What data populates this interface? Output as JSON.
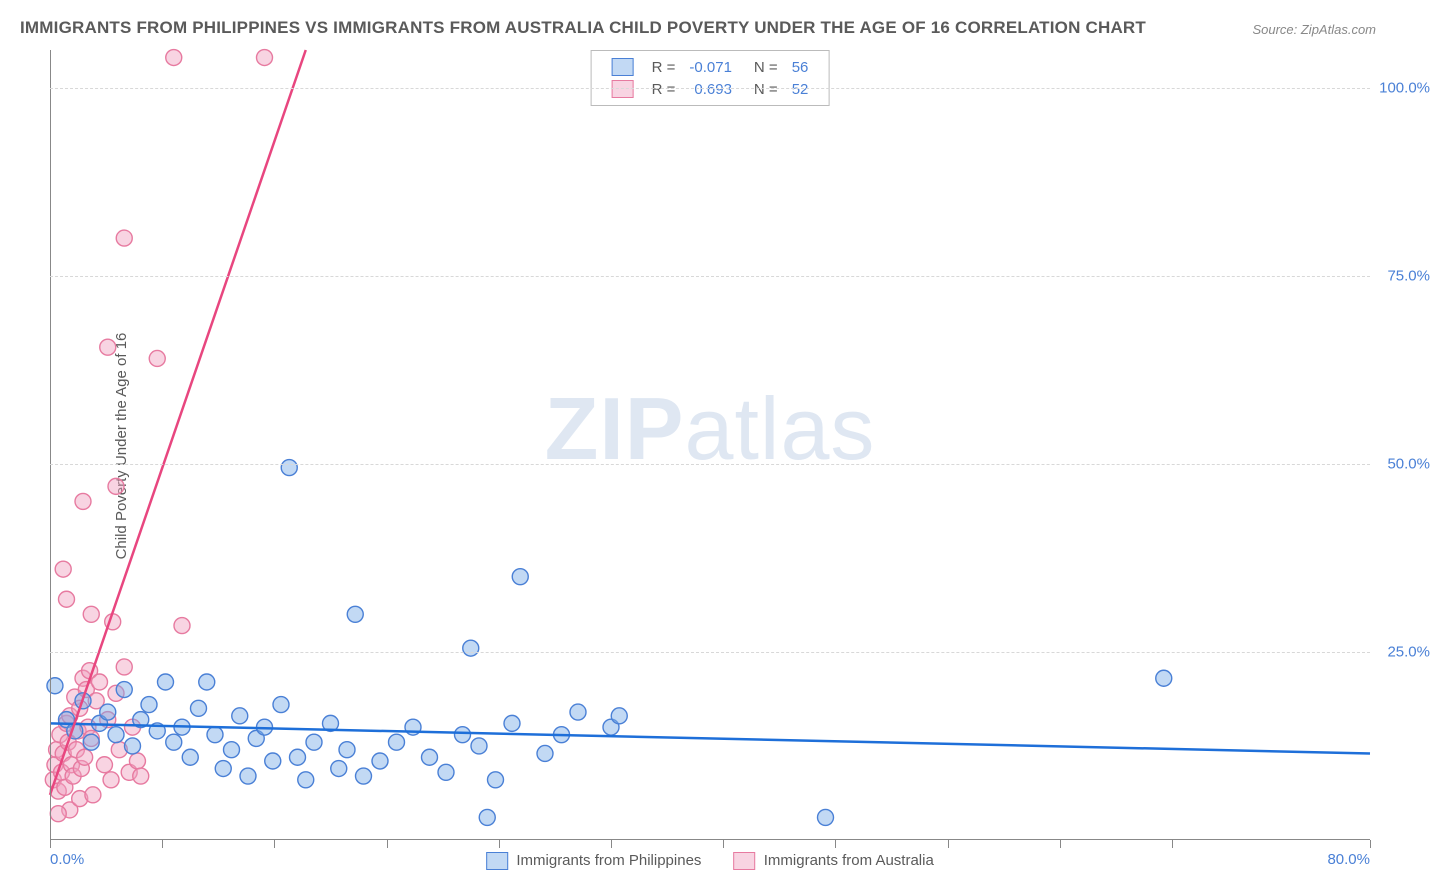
{
  "title": "IMMIGRANTS FROM PHILIPPINES VS IMMIGRANTS FROM AUSTRALIA CHILD POVERTY UNDER THE AGE OF 16 CORRELATION CHART",
  "source": "Source: ZipAtlas.com",
  "ylabel": "Child Poverty Under the Age of 16",
  "watermark_a": "ZIP",
  "watermark_b": "atlas",
  "chart": {
    "type": "scatter",
    "background_color": "#ffffff",
    "grid_color": "#d8d8d8",
    "axis_color": "#888888",
    "text_color": "#5a5a5a",
    "value_color": "#4a80d6",
    "title_fontsize": 17,
    "label_fontsize": 15,
    "xlim": [
      0,
      80
    ],
    "ylim": [
      0,
      105
    ],
    "yticks": [
      25,
      50,
      75,
      100
    ],
    "ytick_labels": [
      "25.0%",
      "50.0%",
      "75.0%",
      "100.0%"
    ],
    "xtick_minor": [
      0,
      6.8,
      13.6,
      20.4,
      27.2,
      34,
      40.8,
      47.6,
      54.4,
      61.2,
      68,
      80
    ],
    "xtick_labels": {
      "0": "0.0%",
      "80": "80.0%"
    },
    "series": [
      {
        "name": "Immigrants from Philippines",
        "color_fill": "rgba(120,170,230,0.45)",
        "color_stroke": "#4a80d6",
        "line_color": "#1e6fd9",
        "marker_r": 8,
        "R": "-0.071",
        "N": "56",
        "trend": {
          "x1": 0,
          "y1": 15.5,
          "x2": 80,
          "y2": 11.5
        },
        "points": [
          [
            0.3,
            20.5
          ],
          [
            1.0,
            16.0
          ],
          [
            1.5,
            14.5
          ],
          [
            2.0,
            18.5
          ],
          [
            2.5,
            13.0
          ],
          [
            3.0,
            15.5
          ],
          [
            3.5,
            17.0
          ],
          [
            4.0,
            14.0
          ],
          [
            4.5,
            20.0
          ],
          [
            5.0,
            12.5
          ],
          [
            5.5,
            16.0
          ],
          [
            6.0,
            18.0
          ],
          [
            6.5,
            14.5
          ],
          [
            7.0,
            21.0
          ],
          [
            7.5,
            13.0
          ],
          [
            8.0,
            15.0
          ],
          [
            8.5,
            11.0
          ],
          [
            9.0,
            17.5
          ],
          [
            9.5,
            21.0
          ],
          [
            10.0,
            14.0
          ],
          [
            10.5,
            9.5
          ],
          [
            11.0,
            12.0
          ],
          [
            11.5,
            16.5
          ],
          [
            12.0,
            8.5
          ],
          [
            12.5,
            13.5
          ],
          [
            13.0,
            15.0
          ],
          [
            13.5,
            10.5
          ],
          [
            14.0,
            18.0
          ],
          [
            15.0,
            11.0
          ],
          [
            15.5,
            8.0
          ],
          [
            16.0,
            13.0
          ],
          [
            17.0,
            15.5
          ],
          [
            17.5,
            9.5
          ],
          [
            18.0,
            12.0
          ],
          [
            18.5,
            30.0
          ],
          [
            19.0,
            8.5
          ],
          [
            20.0,
            10.5
          ],
          [
            21.0,
            13.0
          ],
          [
            22.0,
            15.0
          ],
          [
            23.0,
            11.0
          ],
          [
            24.0,
            9.0
          ],
          [
            25.0,
            14.0
          ],
          [
            25.5,
            25.5
          ],
          [
            26.0,
            12.5
          ],
          [
            27.0,
            8.0
          ],
          [
            28.0,
            15.5
          ],
          [
            28.5,
            35.0
          ],
          [
            30.0,
            11.5
          ],
          [
            31.0,
            14.0
          ],
          [
            32.0,
            17.0
          ],
          [
            34.0,
            15.0
          ],
          [
            34.5,
            16.5
          ],
          [
            47.0,
            3.0
          ],
          [
            14.5,
            49.5
          ],
          [
            67.5,
            21.5
          ],
          [
            26.5,
            3.0
          ]
        ]
      },
      {
        "name": "Immigrants from Australia",
        "color_fill": "rgba(240,160,190,0.45)",
        "color_stroke": "#e77aa0",
        "line_color": "#e8467f",
        "marker_r": 8,
        "R": "0.693",
        "N": "52",
        "trend": {
          "x1": 0,
          "y1": 6,
          "x2": 15.5,
          "y2": 105
        },
        "points": [
          [
            0.2,
            8.0
          ],
          [
            0.3,
            10.0
          ],
          [
            0.4,
            12.0
          ],
          [
            0.5,
            6.5
          ],
          [
            0.6,
            14.0
          ],
          [
            0.7,
            9.0
          ],
          [
            0.8,
            11.5
          ],
          [
            0.9,
            7.0
          ],
          [
            1.0,
            15.5
          ],
          [
            1.1,
            13.0
          ],
          [
            1.2,
            16.5
          ],
          [
            1.3,
            10.0
          ],
          [
            1.4,
            8.5
          ],
          [
            1.5,
            19.0
          ],
          [
            1.6,
            12.0
          ],
          [
            1.7,
            14.5
          ],
          [
            1.8,
            17.5
          ],
          [
            1.9,
            9.5
          ],
          [
            2.0,
            21.5
          ],
          [
            2.1,
            11.0
          ],
          [
            2.2,
            20.0
          ],
          [
            2.3,
            15.0
          ],
          [
            2.4,
            22.5
          ],
          [
            2.5,
            13.5
          ],
          [
            2.8,
            18.5
          ],
          [
            3.0,
            21.0
          ],
          [
            3.3,
            10.0
          ],
          [
            3.5,
            16.0
          ],
          [
            3.7,
            8.0
          ],
          [
            4.0,
            19.5
          ],
          [
            4.2,
            12.0
          ],
          [
            4.5,
            23.0
          ],
          [
            4.8,
            9.0
          ],
          [
            5.0,
            15.0
          ],
          [
            5.3,
            10.5
          ],
          [
            5.5,
            8.5
          ],
          [
            1.0,
            32.0
          ],
          [
            0.8,
            36.0
          ],
          [
            2.5,
            30.0
          ],
          [
            2.0,
            45.0
          ],
          [
            4.0,
            47.0
          ],
          [
            3.8,
            29.0
          ],
          [
            8.0,
            28.5
          ],
          [
            3.5,
            65.5
          ],
          [
            6.5,
            64.0
          ],
          [
            4.5,
            80.0
          ],
          [
            7.5,
            104.0
          ],
          [
            13.0,
            104.0
          ],
          [
            1.2,
            4.0
          ],
          [
            1.8,
            5.5
          ],
          [
            0.5,
            3.5
          ],
          [
            2.6,
            6.0
          ]
        ]
      }
    ]
  }
}
